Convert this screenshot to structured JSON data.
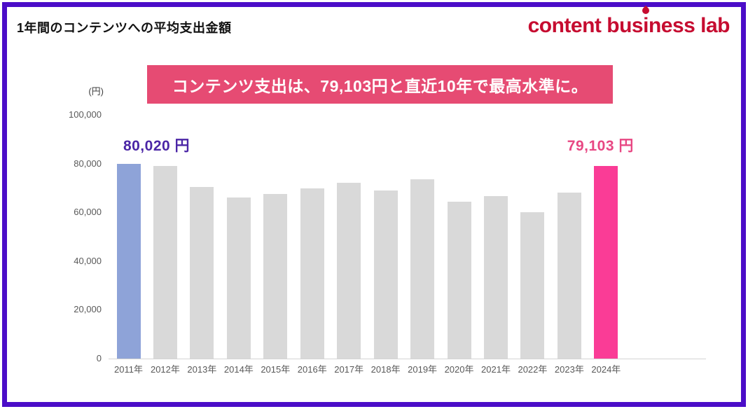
{
  "page": {
    "title": "1年間のコンテンツへの平均支出金額",
    "border_color": "#4B0DC8",
    "background_color": "#FFFFFF"
  },
  "logo": {
    "part_before_i": "content bus",
    "part_i": "i",
    "part_after_i": "ness lab",
    "color": "#C60C30",
    "flame_icon_color": "#C60C30"
  },
  "banner": {
    "text": "コンテンツ支出は、79,103円と直近10年で最高水準に。",
    "bg_color": "#E64B73",
    "text_color": "#FFFFFF"
  },
  "chart_data": {
    "type": "bar",
    "title": "1年間のコンテンツへの平均支出金額",
    "unit_label": "(円)",
    "categories": [
      "2011年",
      "2012年",
      "2013年",
      "2014年",
      "2015年",
      "2016年",
      "2017年",
      "2018年",
      "2019年",
      "2020年",
      "2021年",
      "2022年",
      "2023年",
      "2024年"
    ],
    "values": [
      80020,
      79000,
      70300,
      66000,
      67400,
      69900,
      72200,
      69100,
      73600,
      64300,
      66700,
      60000,
      68200,
      79103
    ],
    "ylim": [
      0,
      100000
    ],
    "yticks": [
      {
        "value": 0,
        "label": "0"
      },
      {
        "value": 20000,
        "label": "20,000"
      },
      {
        "value": 40000,
        "label": "40,000"
      },
      {
        "value": 60000,
        "label": "60,000"
      },
      {
        "value": 80000,
        "label": "80,000"
      },
      {
        "value": 100000,
        "label": "100,000"
      }
    ],
    "grid": false,
    "legend": null,
    "bar_colors": {
      "first": "#8EA3D8",
      "default": "#D9D9D9",
      "last": "#FA3C96"
    },
    "annotations": [
      {
        "text": "80,020 円",
        "bar_index": 0,
        "color": "#4B26A6",
        "dx": 40
      },
      {
        "text": "79,103 円",
        "bar_index": 13,
        "color": "#E84783",
        "dx": -8
      }
    ]
  }
}
